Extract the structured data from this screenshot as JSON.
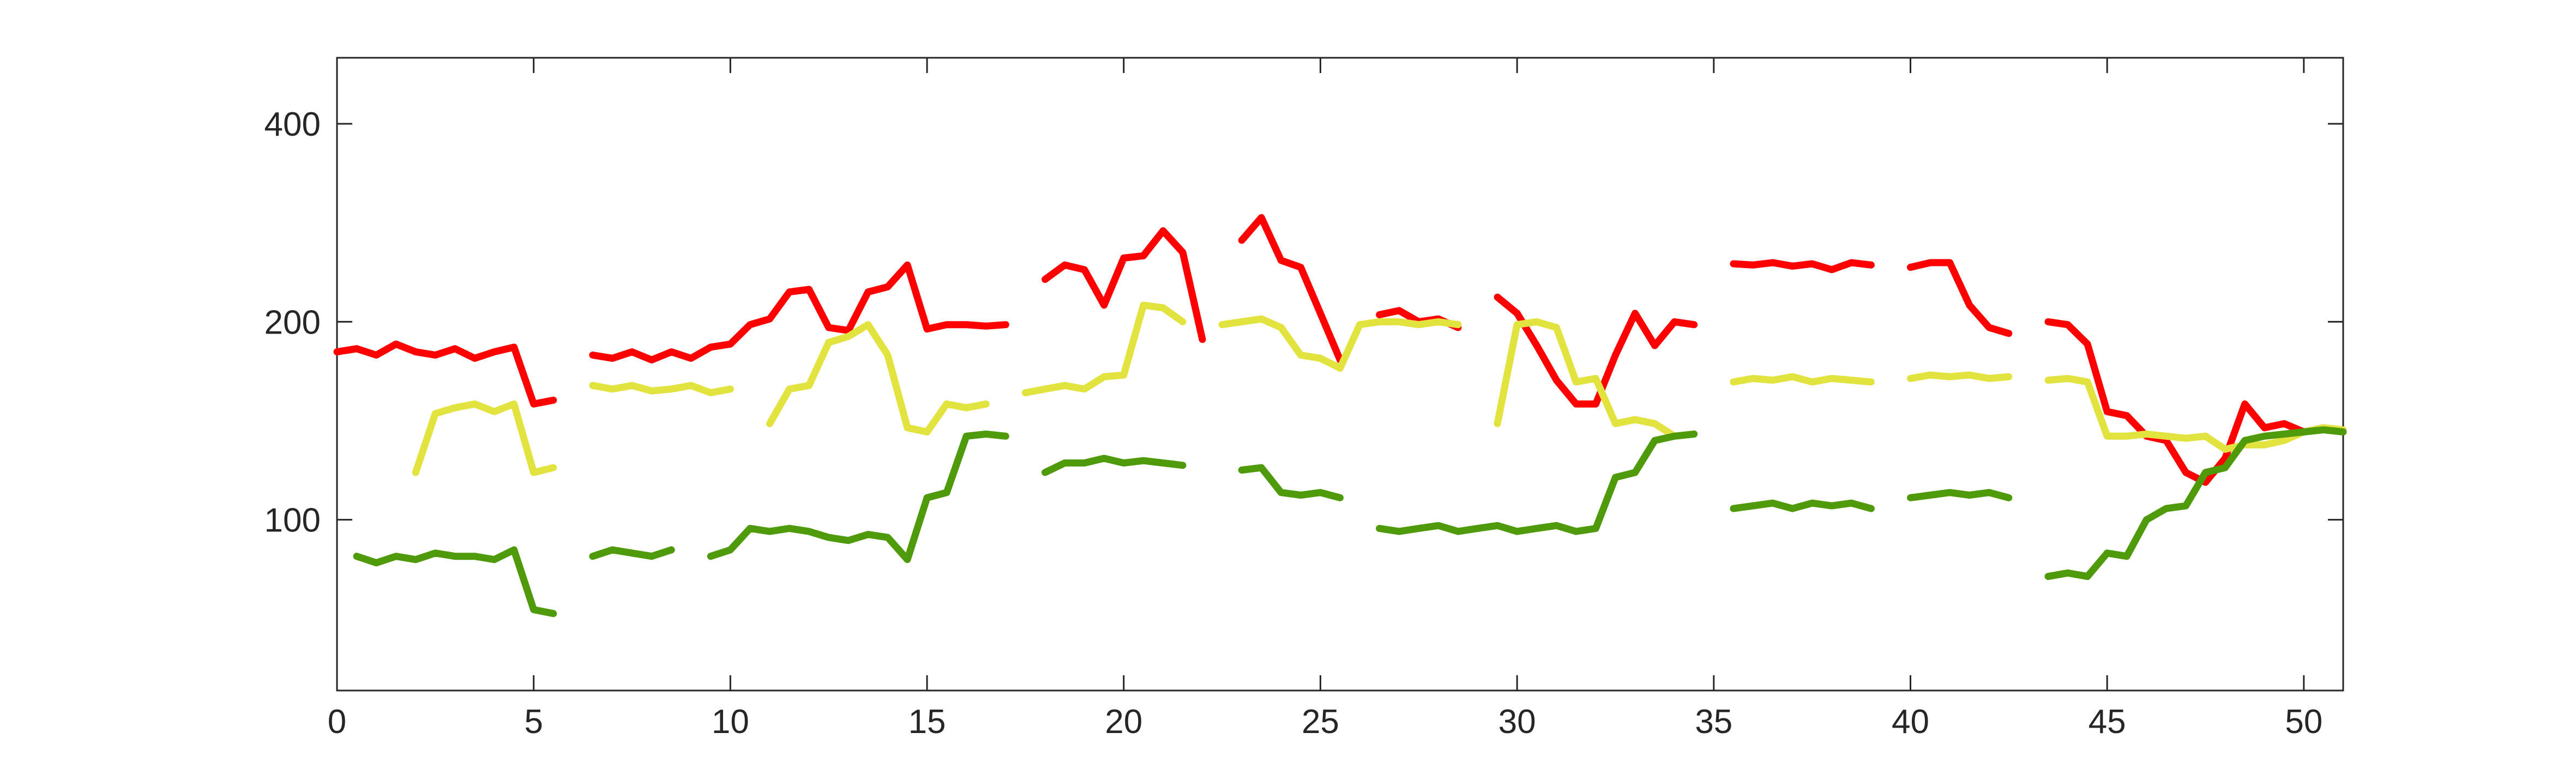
{
  "chart_data": {
    "type": "line",
    "x": [
      0,
      0.5,
      1,
      1.5,
      2,
      2.5,
      3,
      3.5,
      4,
      4.5,
      5,
      5.5,
      6,
      6.5,
      7,
      7.5,
      8,
      8.5,
      9,
      9.5,
      10,
      10.5,
      11,
      11.5,
      12,
      12.5,
      13,
      13.5,
      14,
      14.5,
      15,
      15.5,
      16,
      16.5,
      17,
      17.5,
      18,
      18.5,
      19,
      19.5,
      20,
      20.5,
      21,
      21.5,
      22,
      22.5,
      23,
      23.5,
      24,
      24.5,
      25,
      25.5,
      26,
      26.5,
      27,
      27.5,
      28,
      28.5,
      29,
      29.5,
      30,
      30.5,
      31,
      31.5,
      32,
      32.5,
      33,
      33.5,
      34,
      34.5,
      35,
      35.5,
      36,
      36.5,
      37,
      37.5,
      38,
      38.5,
      39,
      39.5,
      40,
      40.5,
      41,
      41.5,
      42,
      42.5,
      43,
      43.5,
      44,
      44.5,
      45,
      45.5,
      46,
      46.5,
      47,
      47.5,
      48,
      48.5,
      49,
      49.5,
      50,
      50.5,
      51
    ],
    "series": [
      {
        "color": "#ff0000",
        "values": [
          180,
          182,
          178,
          185,
          180,
          178,
          182,
          176,
          180,
          183,
          150,
          152,
          null,
          178,
          176,
          180,
          175,
          180,
          176,
          183,
          185,
          198,
          202,
          222,
          224,
          196,
          194,
          222,
          226,
          244,
          195,
          198,
          198,
          197,
          198,
          null,
          232,
          244,
          240,
          212,
          250,
          252,
          275,
          255,
          188,
          null,
          266,
          288,
          248,
          242,
          206,
          175,
          null,
          205,
          208,
          200,
          202,
          196,
          null,
          218,
          206,
          184,
          163,
          150,
          150,
          178,
          206,
          184,
          200,
          198,
          null,
          245,
          244,
          246,
          243,
          245,
          240,
          246,
          244,
          null,
          242,
          246,
          246,
          212,
          196,
          192,
          null,
          200,
          198,
          185,
          146,
          144,
          134,
          132,
          118,
          114,
          124,
          150,
          138,
          140,
          136,
          138,
          136
        ]
      },
      {
        "color": "#e3e340",
        "values": [
          null,
          null,
          null,
          null,
          118,
          145,
          148,
          150,
          146,
          150,
          118,
          120,
          null,
          160,
          158,
          160,
          157,
          158,
          160,
          156,
          158,
          null,
          140,
          158,
          160,
          186,
          190,
          198,
          178,
          138,
          136,
          150,
          148,
          150,
          null,
          156,
          158,
          160,
          158,
          165,
          166,
          212,
          210,
          200,
          null,
          198,
          200,
          202,
          196,
          178,
          176,
          170,
          198,
          200,
          200,
          198,
          200,
          198,
          null,
          140,
          198,
          200,
          196,
          162,
          164,
          140,
          142,
          140,
          134,
          135,
          null,
          162,
          164,
          163,
          165,
          162,
          164,
          163,
          162,
          null,
          164,
          166,
          165,
          166,
          164,
          165,
          null,
          163,
          164,
          162,
          134,
          134,
          135,
          134,
          133,
          134,
          128,
          130,
          130,
          132,
          136,
          138,
          137
        ]
      },
      {
        "color": "#4f9a0a",
        "values": [
          null,
          88,
          86,
          88,
          87,
          89,
          88,
          88,
          87,
          90,
          73,
          72,
          null,
          88,
          90,
          89,
          88,
          90,
          null,
          88,
          90,
          97,
          96,
          97,
          96,
          94,
          93,
          95,
          94,
          87,
          108,
          110,
          134,
          135,
          134,
          null,
          118,
          122,
          122,
          124,
          122,
          123,
          122,
          121,
          null,
          null,
          119,
          120,
          110,
          109,
          110,
          108,
          null,
          97,
          96,
          97,
          98,
          96,
          97,
          98,
          96,
          97,
          98,
          96,
          97,
          116,
          118,
          132,
          134,
          135,
          null,
          104,
          105,
          106,
          104,
          106,
          105,
          106,
          104,
          null,
          108,
          109,
          110,
          109,
          110,
          108,
          null,
          82,
          83,
          82,
          89,
          88,
          100,
          104,
          105,
          118,
          120,
          132,
          134,
          135,
          136,
          137,
          136
        ]
      }
    ],
    "xlim": [
      0,
      51
    ],
    "xticks": [
      0,
      5,
      10,
      15,
      20,
      25,
      30,
      35,
      40,
      45,
      50
    ],
    "ylim": [
      55,
      504
    ],
    "yticks": [
      100,
      200,
      400
    ],
    "yscale": "log"
  }
}
